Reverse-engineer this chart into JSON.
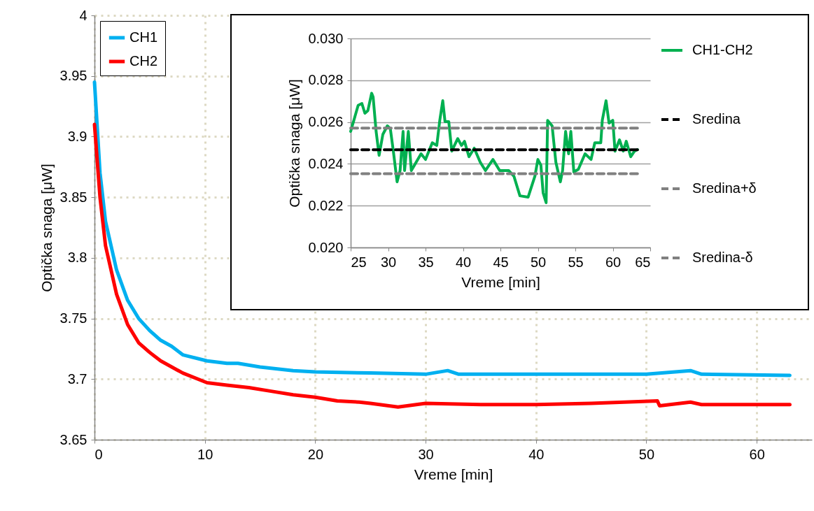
{
  "chart_data": [
    {
      "type": "line",
      "xlabel": "Vreme [min]",
      "ylabel": "Optička snaga [μW]",
      "xlim": [
        0,
        65
      ],
      "ylim": [
        3.65,
        4
      ],
      "xticks": [
        0,
        10,
        20,
        30,
        40,
        50,
        60
      ],
      "yticks": [
        3.65,
        3.7,
        3.75,
        3.8,
        3.85,
        3.9,
        3.95,
        4
      ],
      "grid": true,
      "legend": "top left",
      "series": [
        {
          "name": "CH1",
          "color": "#00b0f0",
          "x": [
            0,
            0.5,
            1,
            2,
            3,
            4,
            5,
            6,
            6.4,
            7,
            8,
            10.2,
            12,
            13,
            15,
            18,
            20,
            25,
            30,
            32,
            33,
            40,
            50,
            54,
            55,
            63
          ],
          "values": [
            3.945,
            3.87,
            3.83,
            3.79,
            3.765,
            3.75,
            3.74,
            3.732,
            3.73,
            3.727,
            3.72,
            3.715,
            3.713,
            3.713,
            3.71,
            3.707,
            3.706,
            3.705,
            3.704,
            3.707,
            3.704,
            3.704,
            3.704,
            3.707,
            3.704,
            3.703
          ]
        },
        {
          "name": "CH2",
          "color": "#ff0000",
          "x": [
            0,
            0.5,
            1,
            2,
            3,
            4,
            5,
            6,
            7,
            8,
            10.2,
            12,
            14,
            16,
            18,
            20,
            22,
            24,
            25,
            27.5,
            30,
            35,
            40,
            45,
            51,
            51.2,
            54,
            55,
            63
          ],
          "values": [
            3.91,
            3.85,
            3.81,
            3.77,
            3.745,
            3.73,
            3.722,
            3.715,
            3.71,
            3.705,
            3.697,
            3.695,
            3.693,
            3.69,
            3.687,
            3.685,
            3.682,
            3.681,
            3.68,
            3.677,
            3.68,
            3.679,
            3.679,
            3.68,
            3.682,
            3.678,
            3.681,
            3.679,
            3.679
          ]
        }
      ]
    },
    {
      "type": "line",
      "xlabel": "Vreme [min]",
      "ylabel": "Optička snaga [μW]",
      "xlim": [
        25,
        65
      ],
      "ylim": [
        0.02,
        0.03
      ],
      "xticks": [
        25,
        30,
        35,
        40,
        45,
        50,
        55,
        60,
        65
      ],
      "yticks": [
        {
          "value": 0.02,
          "label": "0.020"
        },
        {
          "value": 0.022,
          "label": "0.022"
        },
        {
          "value": 0.024,
          "label": "0.024"
        },
        {
          "value": 0.026,
          "label": "0.026"
        },
        {
          "value": 0.028,
          "label": "0.028"
        },
        {
          "value": 0.03,
          "label": "0.030"
        }
      ],
      "grid": "y",
      "legend": "right",
      "series": [
        {
          "name": "CH1-CH2",
          "color": "#00b050",
          "line_style": "solid",
          "x": [
            25,
            26,
            26.5,
            26.9,
            27.3,
            27.8,
            28,
            28.4,
            28.8,
            29.3,
            29.9,
            30.3,
            30.7,
            31.2,
            31.6,
            32,
            32.2,
            32.7,
            33.1,
            34.4,
            35,
            35.9,
            36.5,
            36.9,
            37.3,
            37.6,
            38.1,
            38.5,
            39.3,
            39.8,
            40.2,
            40.8,
            41.5,
            42.3,
            43,
            44,
            44.9,
            46.1,
            46.8,
            47.6,
            48.7,
            49.6,
            50,
            50.4,
            50.7,
            51.1,
            51.3,
            51.9,
            52.4,
            53,
            53.3,
            53.7,
            54.1,
            54.4,
            54.8,
            55.4,
            56.3,
            57.1,
            57.6,
            58.4,
            58.6,
            59.1,
            59.5,
            60,
            60.3,
            60.9,
            61.4,
            61.8,
            62.4,
            62.9,
            63.3
          ],
          "values": [
            0.02555,
            0.0268,
            0.02689,
            0.02642,
            0.02655,
            0.02738,
            0.0272,
            0.02555,
            0.02441,
            0.02541,
            0.02582,
            0.02568,
            0.02461,
            0.02314,
            0.02368,
            0.02555,
            0.02368,
            0.02555,
            0.02368,
            0.02448,
            0.02421,
            0.02501,
            0.02488,
            0.02608,
            0.02702,
            0.02602,
            0.02602,
            0.02461,
            0.02521,
            0.02488,
            0.02508,
            0.02434,
            0.02475,
            0.02408,
            0.02368,
            0.02421,
            0.02368,
            0.02368,
            0.02341,
            0.02247,
            0.02241,
            0.02341,
            0.02421,
            0.02394,
            0.02261,
            0.02214,
            0.02608,
            0.02582,
            0.02408,
            0.02314,
            0.02368,
            0.02555,
            0.02448,
            0.02555,
            0.02361,
            0.02374,
            0.02448,
            0.02421,
            0.02501,
            0.02501,
            0.02608,
            0.02702,
            0.02595,
            0.02608,
            0.02461,
            0.02515,
            0.02461,
            0.02508,
            0.02434,
            0.02461,
            0.02468
          ]
        },
        {
          "name": "Sredina",
          "color": "#000000",
          "line_style": "dashed",
          "x": [
            25,
            63.3
          ],
          "values": [
            0.02467,
            0.02467
          ]
        },
        {
          "name": "Sredina+δ",
          "color": "#808080",
          "line_style": "dashed",
          "x": [
            25,
            63.3
          ],
          "values": [
            0.02571,
            0.02571
          ]
        },
        {
          "name": "Sredina-δ",
          "color": "#808080",
          "line_style": "dashed",
          "x": [
            25,
            63.3
          ],
          "values": [
            0.02353,
            0.02353
          ]
        }
      ]
    }
  ]
}
